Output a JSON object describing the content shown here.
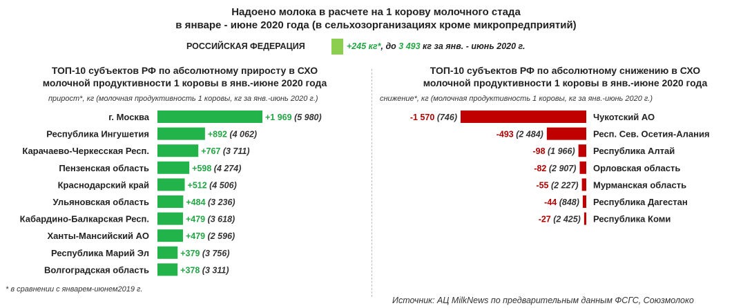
{
  "header": {
    "title_line1": "Надоено молока в расчете на 1 корову молочного стада",
    "title_line2": "в январе - июне 2020 года (в сельхозорганизациях кроме микропредприятий)"
  },
  "federation": {
    "label": "РОССИЙСКАЯ ФЕДЕРАЦИЯ",
    "increase": "+245 кг*",
    "mid_text": ", до ",
    "total": "3 493",
    "tail": " кг за янв. - июнь 2020 г."
  },
  "left_section": {
    "title_line1": "ТОП-10 субъектов РФ по абсолютному приросту в СХО",
    "title_line2": "молочной продуктивности 1 коровы в янв.-июне 2020 года",
    "note": "прирост*, кг (молочная продуктивность 1 коровы, кг за янв.-июнь 2020 г.)"
  },
  "right_section": {
    "title_line1": "ТОП-10 субъектов РФ по абсолютному снижению в СХО",
    "title_line2": "молочной продуктивности 1 коровы в янв.-июне 2020 года",
    "note": "снижение*, кг (молочная продуктивность 1 коровы, кг за янв.-июнь 2020 г.)"
  },
  "footnote": "* в сравнении с январем-июнем2019 г.",
  "source": "Источник: АЦ MilkNews по предварительным данным ФСГС, Союзмолоко",
  "colors": {
    "increase_bar": "#22b34a",
    "decrease_bar": "#c00000",
    "increase_text": "#22a544",
    "decrease_text": "#b00000",
    "federation_bar": "#8ccf4f"
  },
  "chart_data": [
    {
      "type": "bar",
      "orientation": "horizontal",
      "categories": [
        "г. Москва",
        "Республика Ингушетия",
        "Карачаево-Черкесская Респ.",
        "Пензенская область",
        "Краснодарский край",
        "Ульяновская область",
        "Кабардино-Балкарская Респ.",
        "Ханты-Мансийский АО",
        "Республика Марий Эл",
        "Волгоградская область"
      ],
      "values": [
        1969,
        892,
        767,
        598,
        512,
        484,
        479,
        479,
        379,
        378
      ],
      "value_labels": [
        "+1 969",
        "+892",
        "+767",
        "+598",
        "+512",
        "+484",
        "+479",
        "+479",
        "+379",
        "+378"
      ],
      "secondary_labels": [
        "(5 980)",
        "(4 062)",
        "(3 711)",
        "(4 274)",
        "(4 506)",
        "(3 236)",
        "(3 618)",
        "(2 596)",
        "(3 756)",
        "(3 311)"
      ]
    },
    {
      "type": "bar",
      "orientation": "horizontal",
      "categories": [
        "Чукотский АО",
        "Респ. Сев. Осетия-Алания",
        "Республика Алтай",
        "Орловская область",
        "Мурманская область",
        "Республика Дагестан",
        "Республика Коми"
      ],
      "values": [
        -1570,
        -493,
        -98,
        -82,
        -55,
        -44,
        -27
      ],
      "value_labels": [
        "-1 570",
        "-493",
        "-98",
        "-82",
        "-55",
        "-44",
        "-27"
      ],
      "secondary_labels": [
        "(746)",
        "(2 484)",
        "(1 966)",
        "(2 907)",
        "(2 227)",
        "(848)",
        "(2 425)"
      ]
    }
  ]
}
